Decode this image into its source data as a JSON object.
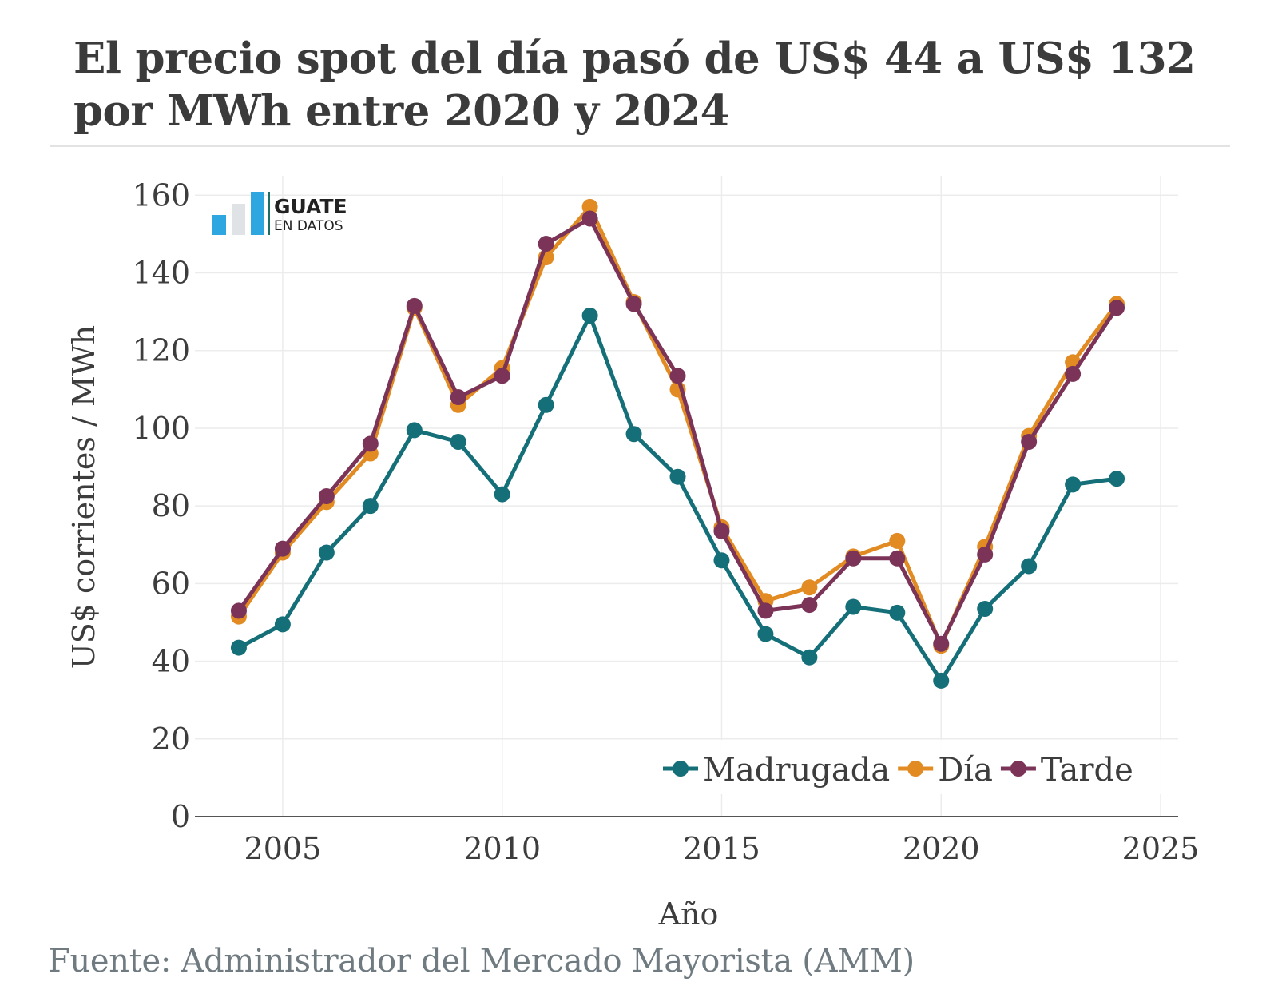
{
  "title": "El precio spot del día pasó de US$ 44 a US$ 132 por MWh entre 2020 y 2024",
  "source": "Fuente: Administrador del Mercado Mayorista (AMM)",
  "logo": {
    "line1": "GUATE",
    "line2": "EN DATOS",
    "colors": [
      "#2ea7e0",
      "#dfe3e6",
      "#2ea7e0",
      "#1e6f63"
    ]
  },
  "chart_data": {
    "type": "line",
    "xlabel": "Año",
    "ylabel": "US$ corrientes / MWh",
    "xlim": [
      2003,
      2025.4
    ],
    "ylim": [
      0,
      165
    ],
    "xticks": [
      2005,
      2010,
      2015,
      2020,
      2025
    ],
    "yticks": [
      0,
      20,
      40,
      60,
      80,
      100,
      120,
      140,
      160
    ],
    "grid": true,
    "legend_position": "bottom-right",
    "x": [
      2004,
      2005,
      2006,
      2007,
      2008,
      2009,
      2010,
      2011,
      2012,
      2013,
      2014,
      2015,
      2016,
      2017,
      2018,
      2019,
      2020,
      2021,
      2022,
      2023,
      2024
    ],
    "series": [
      {
        "name": "Madrugada",
        "color": "#146f78",
        "values": [
          43.5,
          49.5,
          68,
          80,
          99.5,
          96.5,
          83,
          106,
          129,
          98.5,
          87.5,
          66,
          47,
          41,
          54,
          52.5,
          35,
          53.5,
          64.5,
          85.5,
          87
        ]
      },
      {
        "name": "Día",
        "color": "#e18b22",
        "values": [
          51.5,
          68,
          81,
          93.5,
          131,
          106,
          115.5,
          144,
          157,
          132.5,
          110,
          74.5,
          55.5,
          59,
          67,
          71,
          44,
          69.5,
          98,
          117,
          132
        ]
      },
      {
        "name": "Tarde",
        "color": "#7b3458",
        "values": [
          53,
          69,
          82.5,
          96,
          131.5,
          108,
          113.5,
          147.5,
          154,
          132,
          113.5,
          73.5,
          53,
          54.5,
          66.5,
          66.5,
          44.5,
          67.5,
          96.5,
          114,
          131
        ]
      }
    ]
  }
}
